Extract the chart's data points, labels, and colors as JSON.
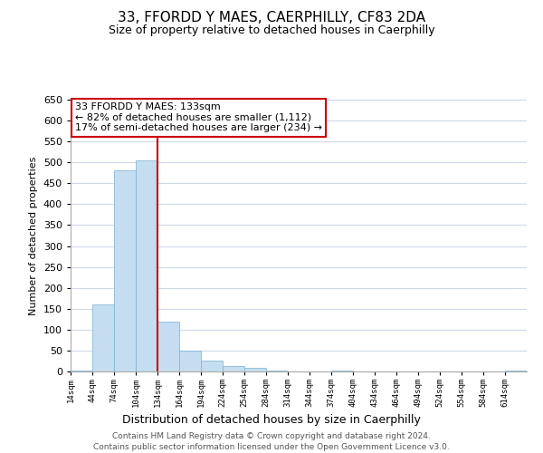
{
  "title": "33, FFORDD Y MAES, CAERPHILLY, CF83 2DA",
  "subtitle": "Size of property relative to detached houses in Caerphilly",
  "xlabel": "Distribution of detached houses by size in Caerphilly",
  "ylabel": "Number of detached properties",
  "bar_color": "#c5ddf0",
  "bar_edge_color": "#7ab0d4",
  "bin_labels": [
    "14sqm",
    "44sqm",
    "74sqm",
    "104sqm",
    "134sqm",
    "164sqm",
    "194sqm",
    "224sqm",
    "254sqm",
    "284sqm",
    "314sqm",
    "344sqm",
    "374sqm",
    "404sqm",
    "434sqm",
    "464sqm",
    "494sqm",
    "524sqm",
    "554sqm",
    "584sqm",
    "614sqm"
  ],
  "bar_heights": [
    3,
    160,
    480,
    505,
    120,
    50,
    25,
    12,
    8,
    2,
    0,
    0,
    2,
    0,
    0,
    0,
    0,
    0,
    0,
    0,
    3
  ],
  "ylim": [
    0,
    650
  ],
  "yticks": [
    0,
    50,
    100,
    150,
    200,
    250,
    300,
    350,
    400,
    450,
    500,
    550,
    600,
    650
  ],
  "vline_color": "#cc0000",
  "annotation_title": "33 FFORDD Y MAES: 133sqm",
  "annotation_line1": "← 82% of detached houses are smaller (1,112)",
  "annotation_line2": "17% of semi-detached houses are larger (234) →",
  "footer_line1": "Contains HM Land Registry data © Crown copyright and database right 2024.",
  "footer_line2": "Contains public sector information licensed under the Open Government Licence v3.0.",
  "background_color": "#ffffff",
  "grid_color": "#cdd8e8"
}
